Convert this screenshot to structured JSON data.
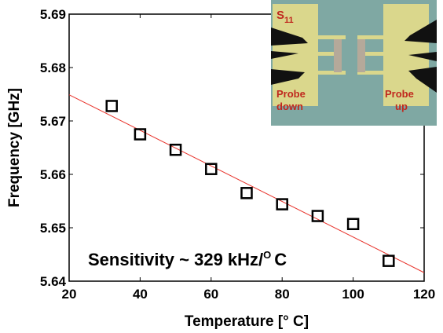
{
  "chart_data": {
    "type": "scatter",
    "x_label": "Temperature [° C]",
    "y_label": "Frequency [GHz]",
    "xlim": [
      20,
      120
    ],
    "xticks": [
      20,
      40,
      60,
      80,
      100,
      120
    ],
    "ylim": [
      5.64,
      5.69
    ],
    "yticks": [
      5.64,
      5.65,
      5.66,
      5.67,
      5.68,
      5.69
    ],
    "points": {
      "x": [
        32,
        40,
        50,
        60,
        70,
        80,
        90,
        100,
        110
      ],
      "y": [
        5.6728,
        5.6675,
        5.6646,
        5.661,
        5.6565,
        5.6544,
        5.6522,
        5.6507,
        5.6438
      ],
      "color": "#000000"
    },
    "fit_line": {
      "x": [
        20,
        120
      ],
      "y": [
        5.6749,
        5.6416
      ],
      "color": "#e8322a"
    },
    "annotation": {
      "text": "Sensitivity ~ 329 kHz/",
      "superscript": "O",
      "unit": "C"
    },
    "inset": {
      "port": "S",
      "port_subscript": "11",
      "left_probe": [
        "Probe",
        "down"
      ],
      "right_probe": [
        "Probe",
        "up"
      ]
    }
  }
}
